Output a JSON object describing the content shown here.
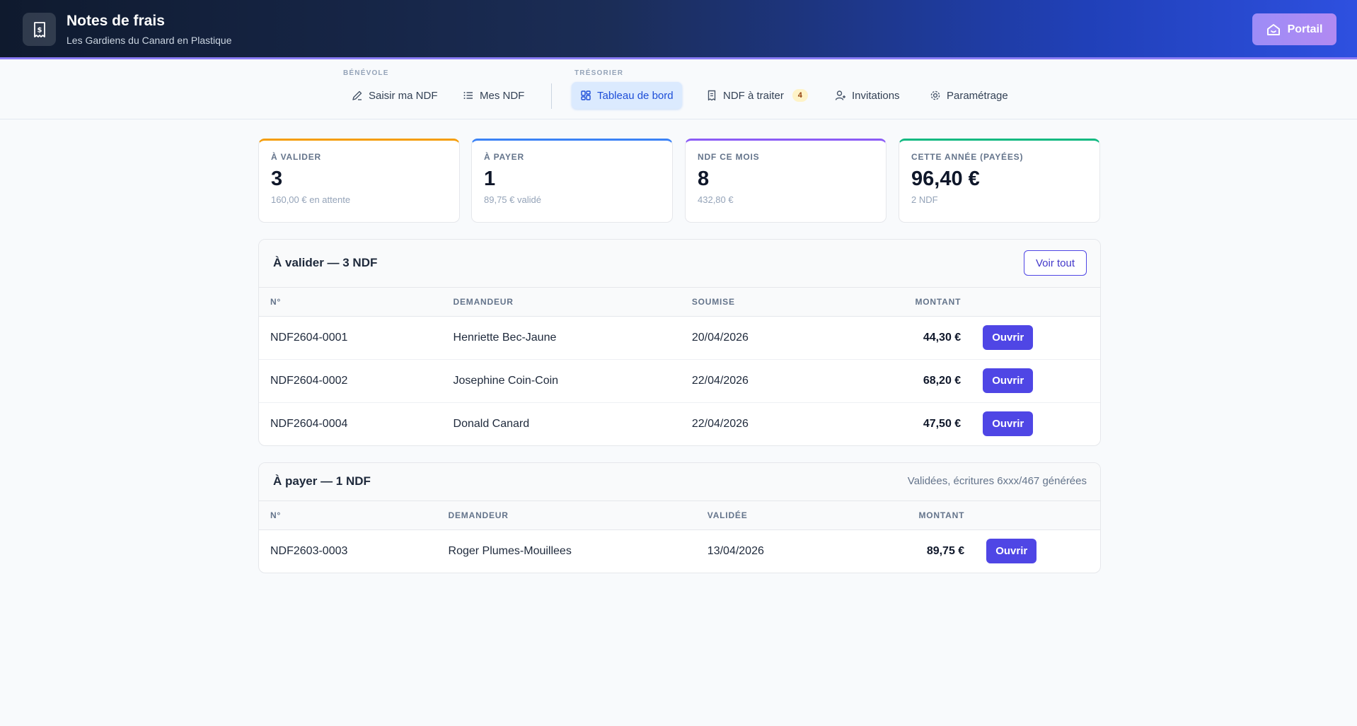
{
  "header": {
    "title": "Notes de frais",
    "subtitle": "Les Gardiens du Canard en Plastique",
    "portal_label": "Portail"
  },
  "nav": {
    "groups": [
      {
        "label": "BÉNÉVOLE"
      },
      {
        "label": "TRÉSORIER"
      }
    ],
    "items": [
      {
        "label": "Saisir ma NDF",
        "icon": "edit-icon"
      },
      {
        "label": "Mes NDF",
        "icon": "list-icon"
      },
      {
        "label": "Tableau de bord",
        "icon": "dashboard-icon",
        "active": true
      },
      {
        "label": "NDF à traiter",
        "icon": "receipt-icon",
        "badge": "4"
      },
      {
        "label": "Invitations",
        "icon": "user-plus-icon"
      },
      {
        "label": "Paramétrage",
        "icon": "gear-icon"
      }
    ]
  },
  "stats": [
    {
      "label": "À VALIDER",
      "value": "3",
      "sub": "160,00 € en attente",
      "color": "#f59e0b"
    },
    {
      "label": "À PAYER",
      "value": "1",
      "sub": "89,75 € validé",
      "color": "#3b82f6"
    },
    {
      "label": "NDF CE MOIS",
      "value": "8",
      "sub": "432,80 €",
      "color": "#8b5cf6"
    },
    {
      "label": "CETTE ANNÉE (PAYÉES)",
      "value": "96,40 €",
      "sub": "2 NDF",
      "color": "#10b981"
    }
  ],
  "to_validate": {
    "title": "À valider — 3 NDF",
    "action_label": "Voir tout",
    "columns": [
      "N°",
      "DEMANDEUR",
      "SOUMISE",
      "MONTANT"
    ],
    "rows": [
      {
        "id": "NDF2604-0001",
        "requester": "Henriette Bec-Jaune",
        "date": "20/04/2026",
        "amount": "44,30 €",
        "action": "Ouvrir"
      },
      {
        "id": "NDF2604-0002",
        "requester": "Josephine Coin-Coin",
        "date": "22/04/2026",
        "amount": "68,20 €",
        "action": "Ouvrir"
      },
      {
        "id": "NDF2604-0004",
        "requester": "Donald Canard",
        "date": "22/04/2026",
        "amount": "47,50 €",
        "action": "Ouvrir"
      }
    ]
  },
  "to_pay": {
    "title": "À payer — 1 NDF",
    "note": "Validées, écritures 6xxx/467 générées",
    "columns": [
      "N°",
      "DEMANDEUR",
      "VALIDÉE",
      "MONTANT"
    ],
    "rows": [
      {
        "id": "NDF2603-0003",
        "requester": "Roger Plumes-Mouillees",
        "date": "13/04/2026",
        "amount": "89,75 €",
        "action": "Ouvrir"
      }
    ]
  }
}
